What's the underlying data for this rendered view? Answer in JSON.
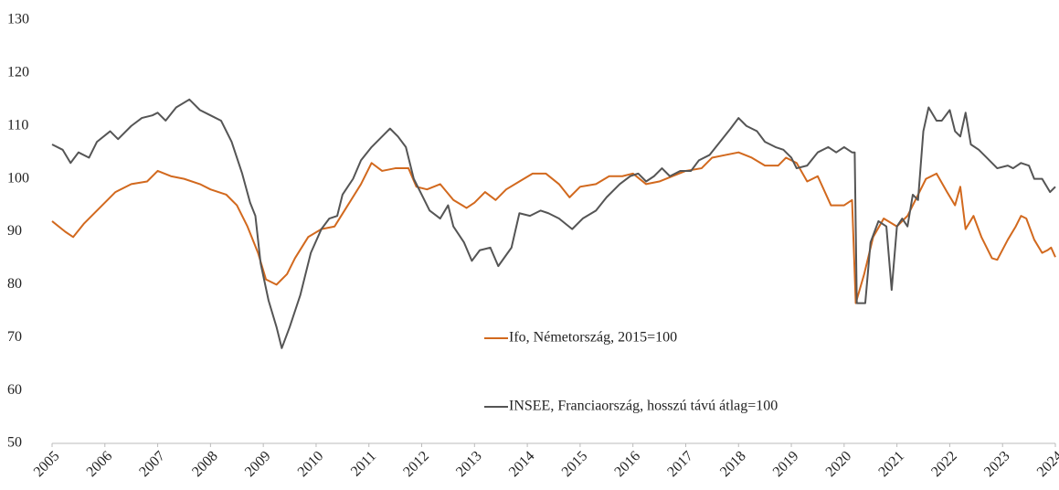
{
  "chart_data": {
    "type": "line",
    "xlim": [
      2005,
      2024
    ],
    "xticks": [
      2005,
      2006,
      2007,
      2008,
      2009,
      2010,
      2011,
      2012,
      2013,
      2014,
      2015,
      2016,
      2017,
      2018,
      2019,
      2020,
      2021,
      2022,
      2023,
      2024
    ],
    "ylim": [
      50,
      130
    ],
    "yticks": [
      50,
      60,
      70,
      80,
      90,
      100,
      110,
      120,
      130
    ],
    "grid": false,
    "series": [
      {
        "name": "Ifo, Németország, 2015=100",
        "color": "#d2691e",
        "x": [
          2005.0,
          2005.25,
          2005.4,
          2005.6,
          2005.9,
          2006.2,
          2006.5,
          2006.8,
          2007.0,
          2007.25,
          2007.5,
          2007.8,
          2008.0,
          2008.3,
          2008.5,
          2008.7,
          2008.9,
          2009.05,
          2009.25,
          2009.45,
          2009.6,
          2009.85,
          2010.1,
          2010.35,
          2010.6,
          2010.85,
          2011.05,
          2011.25,
          2011.5,
          2011.75,
          2011.9,
          2012.1,
          2012.35,
          2012.6,
          2012.85,
          2013.0,
          2013.2,
          2013.4,
          2013.6,
          2013.85,
          2014.1,
          2014.35,
          2014.6,
          2014.8,
          2015.0,
          2015.3,
          2015.55,
          2015.8,
          2016.0,
          2016.25,
          2016.5,
          2016.75,
          2017.0,
          2017.3,
          2017.5,
          2017.75,
          2018.0,
          2018.25,
          2018.5,
          2018.75,
          2018.9,
          2019.1,
          2019.3,
          2019.5,
          2019.75,
          2020.0,
          2020.15,
          2020.22,
          2020.38,
          2020.55,
          2020.75,
          2021.0,
          2021.2,
          2021.35,
          2021.55,
          2021.75,
          2021.95,
          2022.1,
          2022.2,
          2022.3,
          2022.45,
          2022.6,
          2022.8,
          2022.9,
          2023.1,
          2023.25,
          2023.35,
          2023.45,
          2023.6,
          2023.75,
          2023.85,
          2023.92,
          2024.0
        ],
        "values": [
          92,
          90,
          89,
          91.5,
          94.5,
          97.5,
          99,
          99.5,
          101.5,
          100.5,
          100,
          99,
          98,
          97,
          95,
          91,
          86,
          81,
          80,
          82,
          85,
          89,
          90.5,
          91,
          95,
          99,
          103,
          101.5,
          102,
          102,
          98.5,
          98,
          99,
          96,
          94.5,
          95.5,
          97.5,
          96,
          98,
          99.5,
          101,
          101,
          99,
          96.5,
          98.5,
          99,
          100.5,
          100.5,
          101,
          99,
          99.5,
          100.5,
          101.5,
          102,
          104,
          104.5,
          105,
          104,
          102.5,
          102.5,
          104,
          103,
          99.5,
          100.5,
          95,
          95,
          96,
          76.5,
          82,
          89,
          92.5,
          91,
          93,
          96,
          100,
          101,
          97.5,
          95,
          98.5,
          90.5,
          93,
          89,
          85,
          84.7,
          88.5,
          91,
          93,
          92.5,
          88.5,
          86,
          86.5,
          87,
          85.2
        ]
      },
      {
        "name": "INSEE, Franciaország, hosszú távú átlag=100",
        "color": "#555555",
        "x": [
          2005.0,
          2005.2,
          2005.35,
          2005.5,
          2005.7,
          2005.85,
          2006.1,
          2006.25,
          2006.5,
          2006.7,
          2006.9,
          2007.0,
          2007.15,
          2007.35,
          2007.6,
          2007.8,
          2008.0,
          2008.2,
          2008.4,
          2008.6,
          2008.75,
          2008.85,
          2008.95,
          2009.1,
          2009.25,
          2009.35,
          2009.5,
          2009.7,
          2009.9,
          2010.1,
          2010.25,
          2010.4,
          2010.5,
          2010.7,
          2010.85,
          2011.05,
          2011.25,
          2011.4,
          2011.55,
          2011.7,
          2011.85,
          2012.0,
          2012.15,
          2012.35,
          2012.5,
          2012.6,
          2012.8,
          2012.95,
          2013.1,
          2013.3,
          2013.45,
          2013.7,
          2013.85,
          2014.05,
          2014.25,
          2014.4,
          2014.6,
          2014.85,
          2015.05,
          2015.3,
          2015.5,
          2015.75,
          2015.95,
          2016.1,
          2016.25,
          2016.4,
          2016.55,
          2016.7,
          2016.9,
          2017.1,
          2017.25,
          2017.45,
          2017.65,
          2017.85,
          2018.0,
          2018.15,
          2018.35,
          2018.5,
          2018.7,
          2018.85,
          2019.0,
          2019.1,
          2019.3,
          2019.5,
          2019.7,
          2019.85,
          2020.0,
          2020.15,
          2020.2,
          2020.24,
          2020.4,
          2020.5,
          2020.65,
          2020.8,
          2020.9,
          2021.0,
          2021.1,
          2021.2,
          2021.3,
          2021.4,
          2021.5,
          2021.6,
          2021.75,
          2021.85,
          2022.0,
          2022.1,
          2022.2,
          2022.3,
          2022.4,
          2022.55,
          2022.7,
          2022.9,
          2023.1,
          2023.2,
          2023.35,
          2023.5,
          2023.6,
          2023.75,
          2023.9,
          2024.0
        ],
        "values": [
          106.5,
          105.5,
          103,
          105,
          104,
          107,
          109,
          107.5,
          110,
          111.5,
          112,
          112.5,
          111,
          113.5,
          115,
          113,
          112,
          111,
          107,
          101,
          95.5,
          93,
          84,
          77,
          72,
          68,
          72,
          78,
          86,
          90.5,
          92.5,
          93,
          97,
          100,
          103.5,
          106,
          108,
          109.5,
          108,
          106,
          100,
          97,
          94,
          92.5,
          95,
          91,
          88,
          84.5,
          86.5,
          87,
          83.5,
          87,
          93.5,
          93,
          94,
          93.5,
          92.5,
          90.5,
          92.5,
          94,
          96.5,
          99,
          100.5,
          101,
          99.5,
          100.5,
          102,
          100.5,
          101.5,
          101.5,
          103.5,
          104.5,
          107,
          109.5,
          111.5,
          110,
          109,
          107,
          106,
          105.5,
          104,
          102,
          102.5,
          105,
          106,
          105,
          106,
          105,
          105,
          76.5,
          76.5,
          88,
          92,
          91,
          79,
          91,
          92.5,
          91,
          97,
          96,
          109,
          113.5,
          111,
          111,
          113,
          109,
          108,
          112.5,
          106.5,
          105.5,
          104,
          102,
          102.5,
          102,
          103,
          102.5,
          100,
          100,
          97.5,
          98.5
        ]
      }
    ]
  }
}
